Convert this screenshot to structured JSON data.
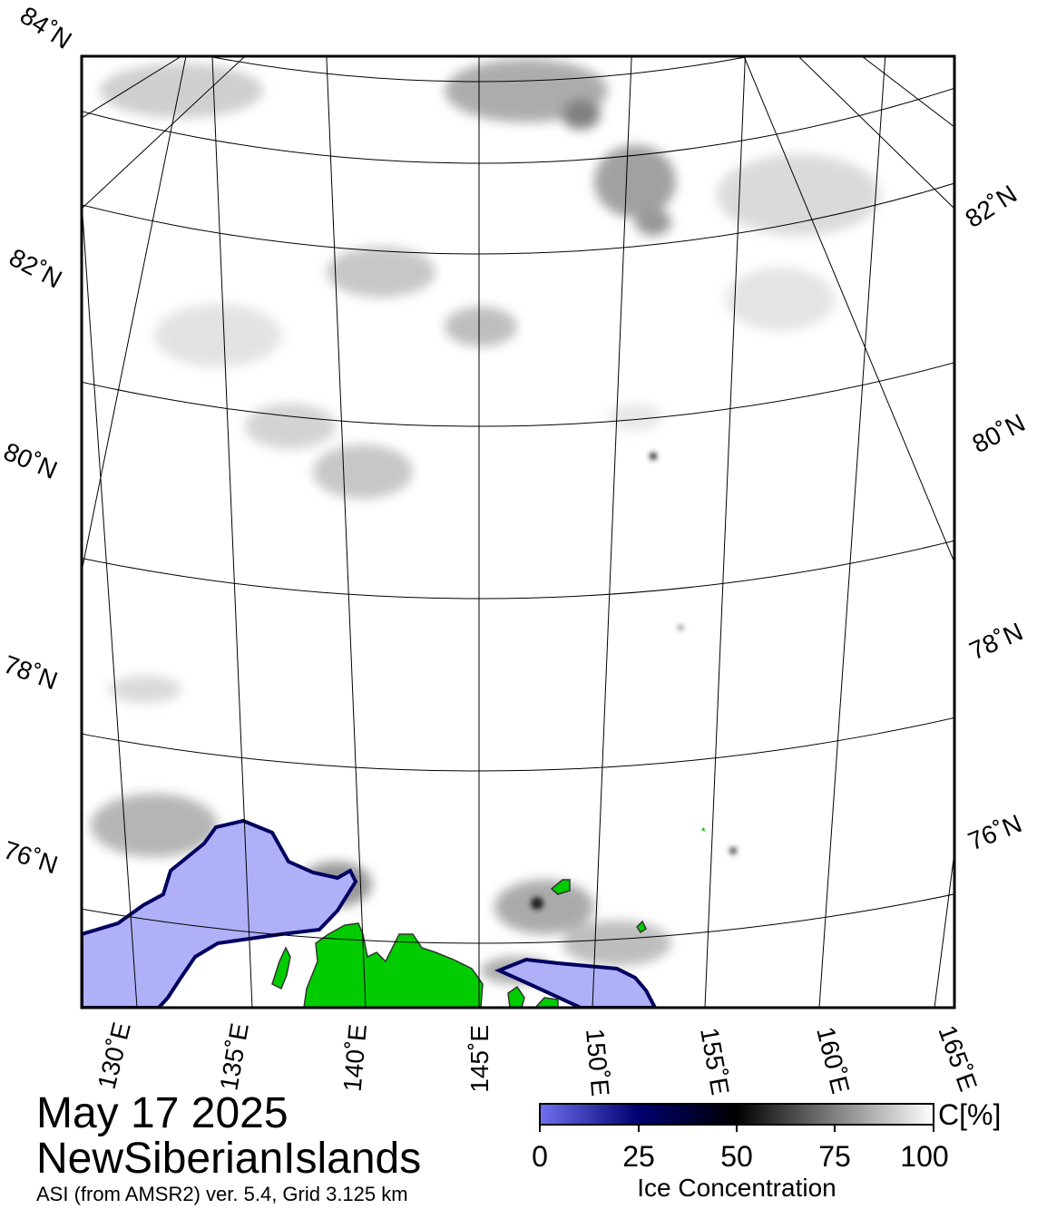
{
  "map": {
    "date": "May 17 2025",
    "region": "NewSiberianIslands",
    "source": "ASI (from AMSR2) ver. 5.4,  Grid 3.125 km",
    "lat_labels_left": [
      "84˚N",
      "82˚N",
      "80˚N",
      "78˚N",
      "76˚N"
    ],
    "lat_labels_right": [
      "82˚N",
      "80˚N",
      "78˚N",
      "76˚N"
    ],
    "lon_labels_bottom": [
      "130˚E",
      "135˚E",
      "140˚E",
      "145˚E",
      "150˚E",
      "155˚E",
      "160˚E",
      "165˚E"
    ],
    "land_color": "#00cc00",
    "open_water_color": "#b0b0f8"
  },
  "colorbar": {
    "title": "Ice Concentration",
    "unit": "C[%]",
    "ticks": [
      "0",
      "25",
      "50",
      "75",
      "100"
    ],
    "range": [
      0,
      100
    ],
    "colors": [
      "#7070f0",
      "#000070",
      "#000000",
      "#808080",
      "#ffffff"
    ]
  }
}
